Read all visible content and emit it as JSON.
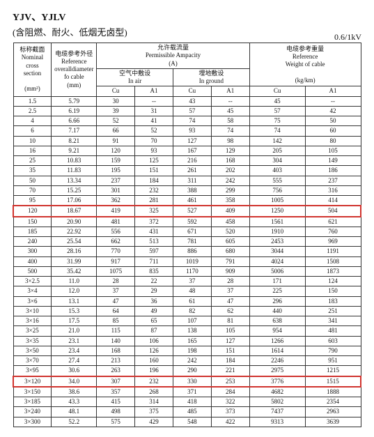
{
  "header": {
    "title_main": "YJV、YJLV",
    "subtitle": "(含阻燃、耐火、低烟无卤型)",
    "voltage": "0.6/1kV"
  },
  "columns": {
    "nominal_cn": "标称截面",
    "nominal_en1": "Nominal",
    "nominal_en2": "cross",
    "nominal_en3": "section",
    "nominal_unit": "(mm²)",
    "diam_cn": "电缆参考外径",
    "diam_en1": "Reference",
    "diam_en2": "overalldiameter",
    "diam_en3": "fo cable",
    "diam_unit": "(mm)",
    "amp_cn": "允许载流量",
    "amp_en": "Permissible Ampacity",
    "amp_unit": "(A)",
    "air_cn": "空气中敷设",
    "air_en": "In air",
    "ground_cn": "埋地敷设",
    "ground_en": "In ground",
    "weight_cn": "电缆参考重量",
    "weight_en1": "Reference",
    "weight_en2": "Weight of cable",
    "weight_unit": "(kg/km)",
    "cu": "Cu",
    "al": "A1"
  },
  "highlight_indices": [
    11,
    28
  ],
  "rows": [
    [
      "1.5",
      "5.79",
      "30",
      "--",
      "43",
      "--",
      "45",
      "--"
    ],
    [
      "2.5",
      "6.19",
      "39",
      "31",
      "57",
      "45",
      "57",
      "42"
    ],
    [
      "4",
      "6.66",
      "52",
      "41",
      "74",
      "58",
      "75",
      "50"
    ],
    [
      "6",
      "7.17",
      "66",
      "52",
      "93",
      "74",
      "74",
      "60"
    ],
    [
      "10",
      "8.21",
      "91",
      "70",
      "127",
      "98",
      "142",
      "80"
    ],
    [
      "16",
      "9.21",
      "120",
      "93",
      "167",
      "129",
      "205",
      "105"
    ],
    [
      "25",
      "10.83",
      "159",
      "125",
      "216",
      "168",
      "304",
      "149"
    ],
    [
      "35",
      "11.83",
      "195",
      "151",
      "261",
      "202",
      "403",
      "186"
    ],
    [
      "50",
      "13.34",
      "237",
      "184",
      "311",
      "242",
      "555",
      "237"
    ],
    [
      "70",
      "15.25",
      "301",
      "232",
      "388",
      "299",
      "756",
      "316"
    ],
    [
      "95",
      "17.06",
      "362",
      "281",
      "461",
      "358",
      "1005",
      "414"
    ],
    [
      "120",
      "18.67",
      "419",
      "325",
      "527",
      "409",
      "1250",
      "504"
    ],
    [
      "150",
      "20.90",
      "481",
      "372",
      "592",
      "458",
      "1561",
      "621"
    ],
    [
      "185",
      "22.92",
      "556",
      "431",
      "671",
      "520",
      "1910",
      "760"
    ],
    [
      "240",
      "25.54",
      "662",
      "513",
      "781",
      "605",
      "2453",
      "969"
    ],
    [
      "300",
      "28.16",
      "770",
      "597",
      "886",
      "680",
      "3044",
      "1191"
    ],
    [
      "400",
      "31.99",
      "917",
      "711",
      "1019",
      "791",
      "4024",
      "1508"
    ],
    [
      "500",
      "35.42",
      "1075",
      "835",
      "1170",
      "909",
      "5006",
      "1873"
    ],
    [
      "3×2.5",
      "11.0",
      "28",
      "22",
      "37",
      "28",
      "171",
      "124"
    ],
    [
      "3×4",
      "12.0",
      "37",
      "29",
      "48",
      "37",
      "225",
      "150"
    ],
    [
      "3×6",
      "13.1",
      "47",
      "36",
      "61",
      "47",
      "296",
      "183"
    ],
    [
      "3×10",
      "15.3",
      "64",
      "49",
      "82",
      "62",
      "440",
      "251"
    ],
    [
      "3×16",
      "17.5",
      "85",
      "65",
      "107",
      "81",
      "638",
      "341"
    ],
    [
      "3×25",
      "21.0",
      "115",
      "87",
      "138",
      "105",
      "954",
      "481"
    ],
    [
      "3×35",
      "23.1",
      "140",
      "106",
      "165",
      "127",
      "1266",
      "603"
    ],
    [
      "3×50",
      "23.4",
      "168",
      "126",
      "198",
      "151",
      "1614",
      "790"
    ],
    [
      "3×70",
      "27.4",
      "213",
      "160",
      "242",
      "184",
      "2246",
      "951"
    ],
    [
      "3×95",
      "30.6",
      "263",
      "196",
      "290",
      "221",
      "2975",
      "1215"
    ],
    [
      "3×120",
      "34.0",
      "307",
      "232",
      "330",
      "253",
      "3776",
      "1515"
    ],
    [
      "3×150",
      "38.6",
      "357",
      "268",
      "371",
      "284",
      "4682",
      "1888"
    ],
    [
      "3×185",
      "43.3",
      "415",
      "314",
      "418",
      "322",
      "5802",
      "2354"
    ],
    [
      "3×240",
      "48.1",
      "498",
      "375",
      "485",
      "373",
      "7437",
      "2963"
    ],
    [
      "3×300",
      "52.2",
      "575",
      "429",
      "548",
      "422",
      "9313",
      "3639"
    ]
  ]
}
